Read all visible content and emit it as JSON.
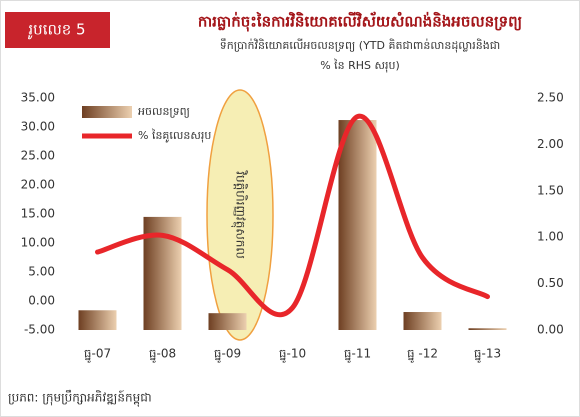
{
  "chart_data": {
    "type": "bar_line",
    "figure_label": "រូបលេខ 5",
    "title": "ការធ្លាក់ចុះនៃការវិនិយោគលើវិស័យសំណង់និងអចលនទ្រព្យ",
    "subtitle": [
      "ទឹកប្រាក់វិនិយោគលើអចលនទ្រព្យ (YTD គិតជាពាន់លានដុល្លារនិងជា",
      "% នៃ RHS សរុប)"
    ],
    "annotation": "វិបត្តិហិរញ្ញវត្ថុសកល",
    "source": "ប្រភព: ក្រុមប្រឹក្សាអភិវឌ្ឍន៍កម្ពុជា",
    "categories": [
      "ធ្នូ-07",
      "ធ្នូ-08",
      "ធ្នូ-09",
      "ធ្នូ-10",
      "ធ្នូ-11",
      "ធ្នូ -12",
      "ធ្នូ-13"
    ],
    "series": [
      {
        "name": "អចលនទ្រព្យ",
        "type": "bar",
        "color": "#8a5a36",
        "values": [
          -1.6,
          14.5,
          -2.1,
          null,
          31.2,
          -1.9,
          -4.7
        ]
      },
      {
        "name": "% នៃគូលេនសរុប",
        "type": "line",
        "color": "#e8262a",
        "axis": "y2",
        "values": [
          0.84,
          1.02,
          0.65,
          0.24,
          2.3,
          0.78,
          0.36
        ]
      }
    ],
    "ylim": [
      -5,
      35
    ],
    "yticks": [
      {
        "value": -5,
        "label": "-5.00"
      },
      {
        "value": 0,
        "label": "0.00"
      },
      {
        "value": 5,
        "label": "5.00"
      },
      {
        "value": 10,
        "label": "10.00"
      },
      {
        "value": 15,
        "label": "15.00"
      },
      {
        "value": 20,
        "label": "20.00"
      },
      {
        "value": 25,
        "label": "25.00"
      },
      {
        "value": 30,
        "label": "30.00"
      },
      {
        "value": 35,
        "label": "35.00"
      }
    ],
    "y2lim": [
      0,
      2.5
    ],
    "y2ticks": [
      {
        "value": 0,
        "label": "0.00"
      },
      {
        "value": 0.5,
        "label": "0.50"
      },
      {
        "value": 1,
        "label": "1.00"
      },
      {
        "value": 1.5,
        "label": "1.50"
      },
      {
        "value": 2,
        "label": "2.00"
      },
      {
        "value": 2.5,
        "label": "2.50"
      }
    ],
    "grid": false
  }
}
